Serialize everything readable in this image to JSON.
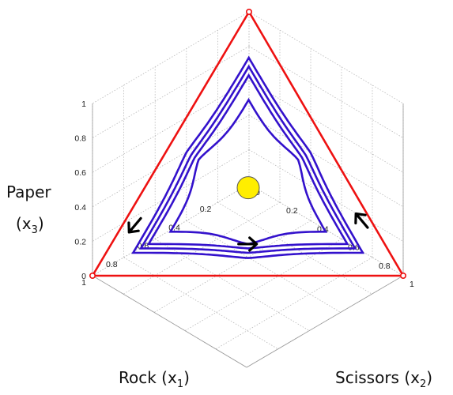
{
  "chart_data": {
    "type": "line",
    "projection": "3d-simplex",
    "xlabel": "Rock (x1)",
    "ylabel": "Scissors (x2)",
    "zlabel": "Paper (x3)",
    "axis_titles": {
      "x": {
        "base": "Rock (x",
        "sub": "1",
        "end": ")"
      },
      "y": {
        "base": "Scissors (x",
        "sub": "2",
        "end": ")"
      },
      "z": {
        "base": "Paper",
        "paren_open": "(x",
        "sub": "3",
        "end": ")"
      }
    },
    "xlim": [
      0,
      1
    ],
    "ylim": [
      0,
      1
    ],
    "zlim": [
      0,
      1
    ],
    "x_ticks": [
      "0",
      "0.2",
      "0.4",
      "0.6",
      "0.8",
      "1"
    ],
    "y_ticks": [
      "0",
      "0.2",
      "0.4",
      "0.6",
      "0.8",
      "1"
    ],
    "z_ticks": [
      "0",
      "0.2",
      "0.4",
      "0.6",
      "0.8",
      "1"
    ],
    "grid": true,
    "simplex_color": "#ee1111",
    "trajectory_color": "#3311cc",
    "equilibrium_color": "#ffee00",
    "vertices": [
      {
        "name": "rock-vertex",
        "x1": 1,
        "x2": 0,
        "x3": 0
      },
      {
        "name": "scissors-vertex",
        "x1": 0,
        "x2": 1,
        "x3": 0
      },
      {
        "name": "paper-vertex",
        "x1": 0,
        "x2": 0,
        "x3": 1
      }
    ],
    "equilibrium": {
      "x1": 0.333,
      "x2": 0.333,
      "x3": 0.333
    },
    "orbits": [
      {
        "d0": 0.2,
        "d1": 0.26
      },
      {
        "d0": 0.26,
        "d1": 0.31
      },
      {
        "d0": 0.31,
        "d1": 0.36
      },
      {
        "d0": 0.36,
        "d1": 0.5
      }
    ],
    "direction_arrows": [
      {
        "name": "arrow-left-edge",
        "x1": 0.77,
        "x2": 0.04,
        "x3": 0.19
      },
      {
        "name": "arrow-right-edge",
        "x1": 0.03,
        "x2": 0.76,
        "x3": 0.21
      },
      {
        "name": "arrow-bottom-edge",
        "x1": 0.44,
        "x2": 0.44,
        "x3": 0.12
      }
    ]
  }
}
